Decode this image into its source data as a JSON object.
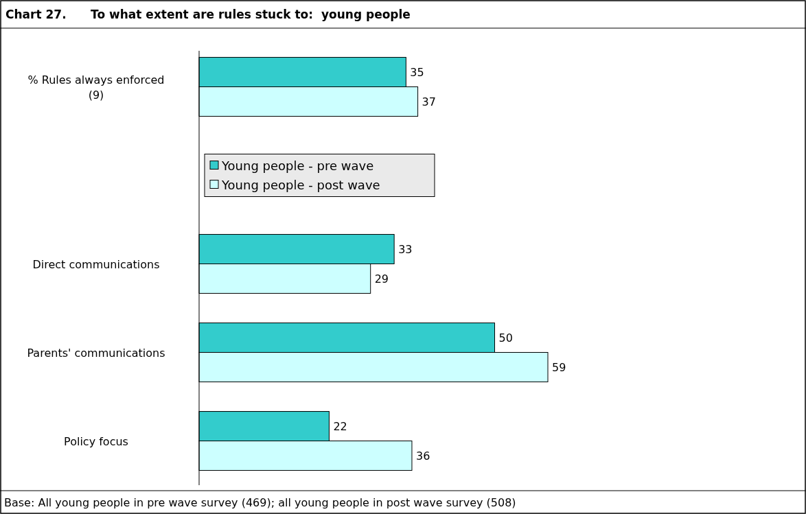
{
  "chart_data": {
    "type": "bar",
    "orientation": "horizontal",
    "title": "Chart 27.      To what extent are rules stuck to:  young people",
    "categories": [
      "% Rules always enforced (9)",
      null,
      "Direct communications",
      "Parents' communications",
      "Policy focus"
    ],
    "series": [
      {
        "name": "Young people - pre wave",
        "color": "#33cccc",
        "values": [
          35,
          null,
          33,
          50,
          22
        ]
      },
      {
        "name": "Young people - post wave",
        "color": "#ccffff",
        "values": [
          37,
          null,
          29,
          59,
          36
        ]
      }
    ],
    "data_labels": true,
    "legend": "left",
    "annotations": [
      "Base: All young people in pre wave survey (469); all young people in post wave survey (508)"
    ]
  }
}
